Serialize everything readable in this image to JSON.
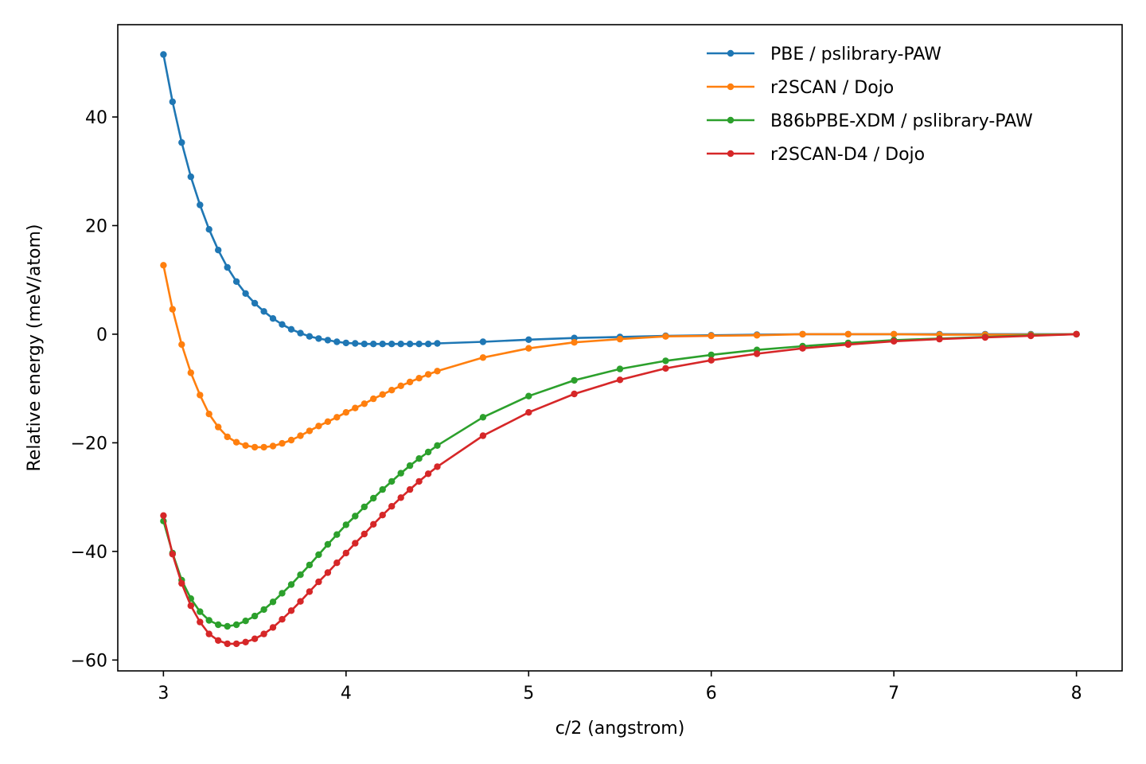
{
  "chart_data": {
    "type": "line",
    "title": "",
    "xlabel": "c/2 (angstrom)",
    "ylabel": "Relative energy (meV/atom)",
    "xlim": [
      2.75,
      8.25
    ],
    "ylim": [
      -62,
      57
    ],
    "xticks": [
      3,
      4,
      5,
      6,
      7,
      8
    ],
    "yticks": [
      -60,
      -40,
      -20,
      0,
      20,
      40
    ],
    "grid": false,
    "legend": "top-right",
    "series": [
      {
        "name": "PBE / pslibrary-PAW",
        "color": "#1f77b4",
        "x": [
          3.0,
          3.05,
          3.1,
          3.15,
          3.2,
          3.25,
          3.3,
          3.35,
          3.4,
          3.45,
          3.5,
          3.55,
          3.6,
          3.65,
          3.7,
          3.75,
          3.8,
          3.85,
          3.9,
          3.95,
          4.0,
          4.05,
          4.1,
          4.15,
          4.2,
          4.25,
          4.3,
          4.35,
          4.4,
          4.45,
          4.5,
          4.75,
          5.0,
          5.25,
          5.5,
          5.75,
          6.0,
          6.25,
          6.5,
          6.75,
          7.0,
          7.25,
          7.5,
          7.75,
          8.0
        ],
        "y": [
          51.5,
          42.8,
          35.3,
          29.0,
          23.8,
          19.3,
          15.5,
          12.3,
          9.7,
          7.5,
          5.7,
          4.2,
          2.9,
          1.8,
          0.9,
          0.2,
          -0.4,
          -0.8,
          -1.1,
          -1.4,
          -1.6,
          -1.7,
          -1.8,
          -1.8,
          -1.8,
          -1.8,
          -1.8,
          -1.8,
          -1.8,
          -1.8,
          -1.7,
          -1.4,
          -1.0,
          -0.7,
          -0.5,
          -0.3,
          -0.2,
          -0.1,
          0.0,
          0.0,
          0.0,
          0.0,
          0.0,
          0.0,
          0.0
        ]
      },
      {
        "name": "r2SCAN / Dojo",
        "color": "#ff7f0e",
        "x": [
          3.0,
          3.05,
          3.1,
          3.15,
          3.2,
          3.25,
          3.3,
          3.35,
          3.4,
          3.45,
          3.5,
          3.55,
          3.6,
          3.65,
          3.7,
          3.75,
          3.8,
          3.85,
          3.9,
          3.95,
          4.0,
          4.05,
          4.1,
          4.15,
          4.2,
          4.25,
          4.3,
          4.35,
          4.4,
          4.45,
          4.5,
          4.75,
          5.0,
          5.25,
          5.5,
          5.75,
          6.0,
          6.25,
          6.5,
          6.75,
          7.0,
          7.25,
          7.5,
          7.75,
          8.0
        ],
        "y": [
          12.7,
          4.6,
          -1.9,
          -7.1,
          -11.2,
          -14.7,
          -17.1,
          -18.9,
          -19.9,
          -20.5,
          -20.8,
          -20.8,
          -20.6,
          -20.1,
          -19.5,
          -18.7,
          -17.8,
          -16.9,
          -16.1,
          -15.3,
          -14.4,
          -13.6,
          -12.8,
          -11.9,
          -11.1,
          -10.3,
          -9.5,
          -8.8,
          -8.1,
          -7.4,
          -6.8,
          -4.3,
          -2.6,
          -1.5,
          -0.9,
          -0.4,
          -0.3,
          -0.2,
          0.0,
          0.0,
          0.0,
          -0.1,
          -0.1,
          -0.1,
          0.0
        ]
      },
      {
        "name": "B86bPBE-XDM / pslibrary-PAW",
        "color": "#2ca02c",
        "x": [
          3.0,
          3.05,
          3.1,
          3.15,
          3.2,
          3.25,
          3.3,
          3.35,
          3.4,
          3.45,
          3.5,
          3.55,
          3.6,
          3.65,
          3.7,
          3.75,
          3.8,
          3.85,
          3.9,
          3.95,
          4.0,
          4.05,
          4.1,
          4.15,
          4.2,
          4.25,
          4.3,
          4.35,
          4.4,
          4.45,
          4.5,
          4.75,
          5.0,
          5.25,
          5.5,
          5.75,
          6.0,
          6.25,
          6.5,
          6.75,
          7.0,
          7.25,
          7.5,
          7.75,
          8.0
        ],
        "y": [
          -34.4,
          -40.3,
          -45.3,
          -48.7,
          -51.1,
          -52.7,
          -53.5,
          -53.8,
          -53.5,
          -52.8,
          -51.9,
          -50.7,
          -49.3,
          -47.7,
          -46.1,
          -44.3,
          -42.5,
          -40.6,
          -38.7,
          -36.9,
          -35.1,
          -33.5,
          -31.8,
          -30.2,
          -28.6,
          -27.1,
          -25.6,
          -24.2,
          -22.9,
          -21.7,
          -20.5,
          -15.3,
          -11.4,
          -8.5,
          -6.4,
          -4.9,
          -3.8,
          -2.9,
          -2.2,
          -1.6,
          -1.1,
          -0.8,
          -0.5,
          -0.2,
          0.0
        ]
      },
      {
        "name": "r2SCAN-D4 / Dojo",
        "color": "#d62728",
        "x": [
          3.0,
          3.05,
          3.1,
          3.15,
          3.2,
          3.25,
          3.3,
          3.35,
          3.4,
          3.45,
          3.5,
          3.55,
          3.6,
          3.65,
          3.7,
          3.75,
          3.8,
          3.85,
          3.9,
          3.95,
          4.0,
          4.05,
          4.1,
          4.15,
          4.2,
          4.25,
          4.3,
          4.35,
          4.4,
          4.45,
          4.5,
          4.75,
          5.0,
          5.25,
          5.5,
          5.75,
          6.0,
          6.25,
          6.5,
          6.75,
          7.0,
          7.25,
          7.5,
          7.75,
          8.0
        ],
        "y": [
          -33.4,
          -40.5,
          -45.9,
          -50.0,
          -53.0,
          -55.2,
          -56.4,
          -57.0,
          -57.0,
          -56.7,
          -56.1,
          -55.2,
          -54.0,
          -52.5,
          -50.9,
          -49.2,
          -47.4,
          -45.6,
          -43.9,
          -42.1,
          -40.3,
          -38.5,
          -36.8,
          -35.0,
          -33.3,
          -31.7,
          -30.1,
          -28.6,
          -27.1,
          -25.7,
          -24.4,
          -18.7,
          -14.4,
          -11.0,
          -8.4,
          -6.3,
          -4.8,
          -3.6,
          -2.6,
          -1.9,
          -1.3,
          -0.9,
          -0.6,
          -0.3,
          0.0
        ]
      }
    ]
  }
}
